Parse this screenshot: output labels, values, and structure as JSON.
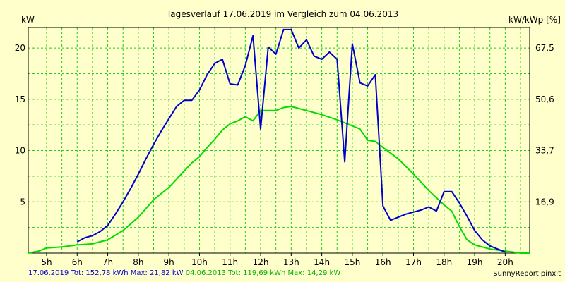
{
  "chart_data": {
    "type": "line",
    "title": "Tagesverlauf 17.06.2019 im Vergleich zum 04.06.2013",
    "ylabel_left": "kW",
    "ylabel_right": "kW/kWp [%]",
    "x_ticks": [
      "5h",
      "6h",
      "7h",
      "8h",
      "9h",
      "10h",
      "11h",
      "12h",
      "13h",
      "14h",
      "15h",
      "16h",
      "17h",
      "18h",
      "19h",
      "20h"
    ],
    "y_ticks_left": [
      "5",
      "10",
      "15",
      "20"
    ],
    "y_ticks_right": [
      "16,9",
      "33,7",
      "50,6",
      "67,5"
    ],
    "xlim": [
      4.4,
      20.8
    ],
    "ylim": [
      0,
      22
    ],
    "grid": true,
    "series": [
      {
        "name": "17.06.2019",
        "color": "#0000cc",
        "x": [
          6.0,
          6.25,
          6.5,
          6.75,
          7.0,
          7.25,
          7.5,
          7.75,
          8.0,
          8.25,
          8.5,
          8.75,
          9.0,
          9.25,
          9.5,
          9.75,
          10.0,
          10.25,
          10.5,
          10.75,
          11.0,
          11.25,
          11.5,
          11.75,
          12.0,
          12.25,
          12.5,
          12.75,
          13.0,
          13.25,
          13.5,
          13.75,
          14.0,
          14.25,
          14.5,
          14.75,
          15.0,
          15.25,
          15.5,
          15.75,
          16.0,
          16.25,
          16.5,
          16.75,
          17.0,
          17.25,
          17.5,
          17.75,
          18.0,
          18.25,
          18.5,
          18.75,
          19.0,
          19.25,
          19.5,
          19.75,
          20.0
        ],
        "y": [
          1.1,
          1.5,
          1.7,
          2.1,
          2.7,
          3.8,
          5.0,
          6.3,
          7.7,
          9.2,
          10.6,
          11.9,
          13.1,
          14.3,
          14.9,
          14.9,
          15.9,
          17.4,
          18.5,
          18.9,
          16.5,
          16.4,
          18.3,
          21.2,
          12.1,
          20.1,
          19.4,
          21.8,
          21.8,
          20.0,
          20.8,
          19.2,
          18.9,
          19.6,
          18.9,
          8.9,
          20.4,
          16.6,
          16.3,
          17.4,
          4.6,
          3.2,
          3.5,
          3.8,
          4.0,
          4.2,
          4.5,
          4.1,
          6.0,
          6.0,
          4.9,
          3.6,
          2.2,
          1.3,
          0.7,
          0.4,
          0.1
        ]
      },
      {
        "name": "04.06.2013",
        "color": "#00dd00",
        "x": [
          4.4,
          4.75,
          5.0,
          5.5,
          6.0,
          6.5,
          7.0,
          7.5,
          8.0,
          8.5,
          9.0,
          9.25,
          9.5,
          9.75,
          10.0,
          10.25,
          10.5,
          10.75,
          11.0,
          11.25,
          11.5,
          11.75,
          12.0,
          12.25,
          12.5,
          12.75,
          13.0,
          13.25,
          13.5,
          13.75,
          14.0,
          14.5,
          15.0,
          15.25,
          15.5,
          15.75,
          16.0,
          16.5,
          17.0,
          17.5,
          18.0,
          18.25,
          18.5,
          18.75,
          19.0,
          19.5,
          20.0,
          20.5,
          20.8
        ],
        "y": [
          0.0,
          0.2,
          0.5,
          0.6,
          0.8,
          0.9,
          1.3,
          2.2,
          3.5,
          5.2,
          6.4,
          7.2,
          8.0,
          8.8,
          9.4,
          10.3,
          11.1,
          12.0,
          12.6,
          12.9,
          13.3,
          12.9,
          13.9,
          13.9,
          13.9,
          14.2,
          14.3,
          14.1,
          13.9,
          13.7,
          13.5,
          13.0,
          12.4,
          12.1,
          11.0,
          10.9,
          10.3,
          9.2,
          7.7,
          6.1,
          4.7,
          4.1,
          2.6,
          1.3,
          0.8,
          0.4,
          0.2,
          0.0,
          0.0
        ]
      }
    ],
    "footer": {
      "series1_text": "17.06.2019 Tot: 152,78 kWh Max: 21,82 kW",
      "series2_text": "04.06.2013 Tot: 119,69 kWh Max: 14,29 kW",
      "credit": "SunnyReport pinxit"
    },
    "colors": {
      "background": "#ffffcc",
      "grid": "#22cc22"
    }
  }
}
